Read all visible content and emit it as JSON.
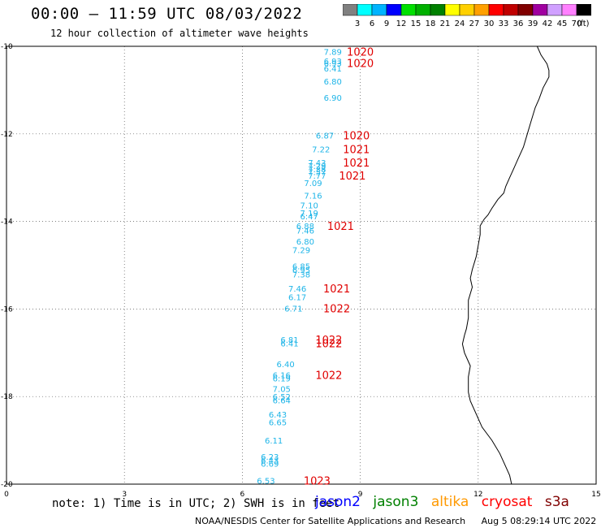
{
  "header": {
    "title": "00:00 – 11:59 UTC 08/03/2022",
    "subtitle": "12 hour collection of altimeter wave heights"
  },
  "color_scale": {
    "labels": [
      "3",
      "6",
      "9",
      "12",
      "15",
      "18",
      "21",
      "24",
      "27",
      "30",
      "33",
      "36",
      "39",
      "42",
      "45",
      "70"
    ],
    "unit": "(ft)",
    "colors": [
      "#808080",
      "#00ffff",
      "#00b4ff",
      "#0000ff",
      "#00e000",
      "#00b000",
      "#008000",
      "#ffff00",
      "#ffd000",
      "#ffa000",
      "#ff0000",
      "#c00000",
      "#800000",
      "#a000a0",
      "#d0a0ff",
      "#ff80ff",
      "#000000"
    ]
  },
  "footer": {
    "note": "note: 1) Time is in UTC; 2) SWH is in feet",
    "legend": [
      {
        "label": "jason2",
        "color": "#0000ff"
      },
      {
        "label": "jason3",
        "color": "#008000"
      },
      {
        "label": "altika",
        "color": "#ff9900"
      },
      {
        "label": "cryosat",
        "color": "#ff0000"
      },
      {
        "label": "s3a",
        "color": "#800000"
      }
    ],
    "credit": "NOAA/NESDIS Center for Satellite Applications and Research",
    "timestamp": "Aug  5 08:29:14 UTC 2022"
  },
  "chart_data": {
    "type": "scatter",
    "xlim": [
      0,
      15
    ],
    "ylim": [
      -20,
      -10
    ],
    "xticks": [
      "0",
      "3",
      "6",
      "9",
      "12",
      "15"
    ],
    "yticks": [
      "-10",
      "-12",
      "-14",
      "-16",
      "-18",
      "-20"
    ],
    "grid": true,
    "swh_points": [
      {
        "x": 8.3,
        "y": -10.12,
        "label": "7.89"
      },
      {
        "x": 8.3,
        "y": -10.33,
        "label": "6.93"
      },
      {
        "x": 8.3,
        "y": -10.38,
        "label": "6.93"
      },
      {
        "x": 8.3,
        "y": -10.5,
        "label": "6.41"
      },
      {
        "x": 8.3,
        "y": -10.8,
        "label": "6.80"
      },
      {
        "x": 8.3,
        "y": -11.17,
        "label": "6.90"
      },
      {
        "x": 8.1,
        "y": -12.03,
        "label": "6.87"
      },
      {
        "x": 8.0,
        "y": -12.35,
        "label": "7.22"
      },
      {
        "x": 7.9,
        "y": -12.65,
        "label": "7.43"
      },
      {
        "x": 7.9,
        "y": -12.73,
        "label": "7.29"
      },
      {
        "x": 7.9,
        "y": -12.8,
        "label": "7.38"
      },
      {
        "x": 7.9,
        "y": -12.87,
        "label": "7.57"
      },
      {
        "x": 7.9,
        "y": -12.95,
        "label": "7.77"
      },
      {
        "x": 7.8,
        "y": -13.12,
        "label": "7.09"
      },
      {
        "x": 7.8,
        "y": -13.4,
        "label": "7.16"
      },
      {
        "x": 7.7,
        "y": -13.63,
        "label": "7.10"
      },
      {
        "x": 7.7,
        "y": -13.8,
        "label": "7.19"
      },
      {
        "x": 7.7,
        "y": -13.88,
        "label": "6.47"
      },
      {
        "x": 7.6,
        "y": -14.1,
        "label": "6.88"
      },
      {
        "x": 7.6,
        "y": -14.2,
        "label": "7.46"
      },
      {
        "x": 7.6,
        "y": -14.45,
        "label": "6.80"
      },
      {
        "x": 7.5,
        "y": -14.65,
        "label": "7.29"
      },
      {
        "x": 7.5,
        "y": -15.02,
        "label": "6.85"
      },
      {
        "x": 7.5,
        "y": -15.1,
        "label": "6.95"
      },
      {
        "x": 7.5,
        "y": -15.2,
        "label": "7.38"
      },
      {
        "x": 7.4,
        "y": -15.53,
        "label": "7.46"
      },
      {
        "x": 7.4,
        "y": -15.72,
        "label": "6.17"
      },
      {
        "x": 7.3,
        "y": -15.98,
        "label": "6.71"
      },
      {
        "x": 7.2,
        "y": -16.7,
        "label": "6.81"
      },
      {
        "x": 7.2,
        "y": -16.78,
        "label": "6.41"
      },
      {
        "x": 7.1,
        "y": -17.25,
        "label": "6.40"
      },
      {
        "x": 7.0,
        "y": -17.5,
        "label": "6.16"
      },
      {
        "x": 7.0,
        "y": -17.58,
        "label": "6.19"
      },
      {
        "x": 7.0,
        "y": -17.82,
        "label": "7.05"
      },
      {
        "x": 7.0,
        "y": -18.0,
        "label": "6.52"
      },
      {
        "x": 7.0,
        "y": -18.08,
        "label": "6.64"
      },
      {
        "x": 6.9,
        "y": -18.4,
        "label": "6.43"
      },
      {
        "x": 6.9,
        "y": -18.58,
        "label": "6.65"
      },
      {
        "x": 6.8,
        "y": -19.0,
        "label": "6.11"
      },
      {
        "x": 6.7,
        "y": -19.37,
        "label": "6.23"
      },
      {
        "x": 6.7,
        "y": -19.45,
        "label": "6.43"
      },
      {
        "x": 6.7,
        "y": -19.53,
        "label": "6.69"
      },
      {
        "x": 6.6,
        "y": -19.92,
        "label": "6.53"
      }
    ],
    "pressure_points": [
      {
        "x": 9.0,
        "y": -10.12,
        "label": "1020"
      },
      {
        "x": 9.0,
        "y": -10.38,
        "label": "1020"
      },
      {
        "x": 8.9,
        "y": -12.03,
        "label": "1020"
      },
      {
        "x": 8.9,
        "y": -12.35,
        "label": "1021"
      },
      {
        "x": 8.9,
        "y": -12.65,
        "label": "1021"
      },
      {
        "x": 8.8,
        "y": -12.95,
        "label": "1021"
      },
      {
        "x": 8.5,
        "y": -14.1,
        "label": "1021"
      },
      {
        "x": 8.4,
        "y": -15.53,
        "label": "1021"
      },
      {
        "x": 8.4,
        "y": -15.98,
        "label": "1022"
      },
      {
        "x": 8.2,
        "y": -16.7,
        "label": "1022"
      },
      {
        "x": 8.2,
        "y": -16.78,
        "label": "1022"
      },
      {
        "x": 8.2,
        "y": -17.5,
        "label": "1022"
      },
      {
        "x": 7.9,
        "y": -19.92,
        "label": "1023"
      }
    ],
    "coastline": [
      [
        13.5,
        -10.0
      ],
      [
        13.6,
        -10.2
      ],
      [
        13.75,
        -10.4
      ],
      [
        13.8,
        -10.55
      ],
      [
        13.8,
        -10.7
      ],
      [
        13.65,
        -10.95
      ],
      [
        13.55,
        -11.2
      ],
      [
        13.45,
        -11.4
      ],
      [
        13.35,
        -11.7
      ],
      [
        13.25,
        -12.0
      ],
      [
        13.15,
        -12.3
      ],
      [
        13.0,
        -12.6
      ],
      [
        12.9,
        -12.8
      ],
      [
        12.8,
        -13.0
      ],
      [
        12.7,
        -13.2
      ],
      [
        12.65,
        -13.35
      ],
      [
        12.5,
        -13.5
      ],
      [
        12.35,
        -13.7
      ],
      [
        12.25,
        -13.85
      ],
      [
        12.15,
        -13.95
      ],
      [
        12.05,
        -14.1
      ],
      [
        12.05,
        -14.3
      ],
      [
        12.0,
        -14.55
      ],
      [
        11.95,
        -14.8
      ],
      [
        11.85,
        -15.1
      ],
      [
        11.8,
        -15.3
      ],
      [
        11.85,
        -15.5
      ],
      [
        11.75,
        -15.8
      ],
      [
        11.75,
        -16.2
      ],
      [
        11.7,
        -16.45
      ],
      [
        11.65,
        -16.6
      ],
      [
        11.6,
        -16.8
      ],
      [
        11.65,
        -17.0
      ],
      [
        11.8,
        -17.3
      ],
      [
        11.75,
        -17.55
      ],
      [
        11.75,
        -17.9
      ],
      [
        11.8,
        -18.1
      ],
      [
        11.95,
        -18.4
      ],
      [
        12.1,
        -18.7
      ],
      [
        12.35,
        -19.0
      ],
      [
        12.55,
        -19.3
      ],
      [
        12.7,
        -19.6
      ],
      [
        12.8,
        -19.8
      ],
      [
        12.85,
        -20.0
      ]
    ]
  }
}
